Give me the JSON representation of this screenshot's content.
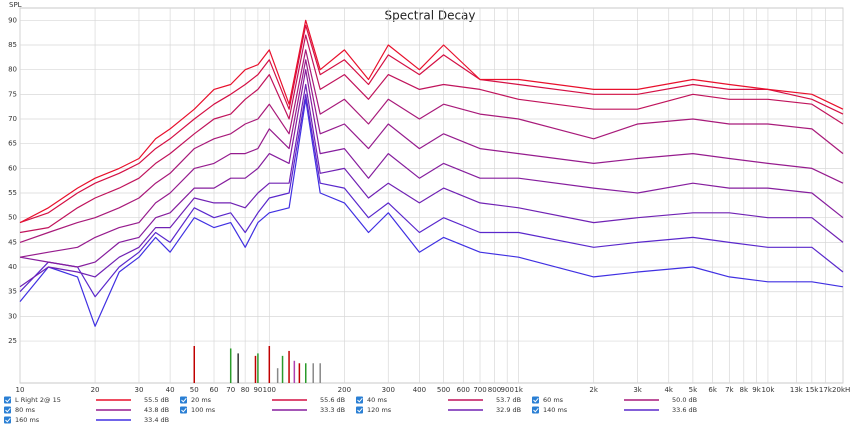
{
  "chart_data": {
    "type": "line",
    "title": "Spectral Decay",
    "y_label": "SPL",
    "log_x": true,
    "grid": true,
    "xlim": [
      10,
      20000
    ],
    "ylim": [
      16.5,
      92.5
    ],
    "yticks": [
      25,
      30,
      35,
      40,
      45,
      50,
      55,
      60,
      65,
      70,
      75,
      80,
      85,
      90
    ],
    "xticks": [
      10,
      20,
      30,
      40,
      50,
      60,
      70,
      80,
      90,
      100,
      200,
      300,
      400,
      500,
      600,
      700,
      800,
      900,
      {
        "value": 1000,
        "label": "1k"
      },
      {
        "value": 2000,
        "label": "2k"
      },
      {
        "value": 3000,
        "label": "3k"
      },
      {
        "value": 4000,
        "label": "4k"
      },
      {
        "value": 5000,
        "label": "5k"
      },
      {
        "value": 6000,
        "label": "6k"
      },
      {
        "value": 7000,
        "label": "7k"
      },
      {
        "value": 8000,
        "label": "8k"
      },
      {
        "value": 9000,
        "label": "9k"
      },
      {
        "value": 10000,
        "label": "10k"
      },
      {
        "value": 13000,
        "label": "13k"
      },
      {
        "value": 15000,
        "label": "15k"
      },
      {
        "value": 17000,
        "label": "17k"
      },
      {
        "value": 20000,
        "label": "20kHz"
      }
    ],
    "x": [
      10,
      13,
      17,
      20,
      25,
      30,
      35,
      40,
      50,
      60,
      70,
      80,
      90,
      100,
      120,
      140,
      160,
      200,
      250,
      300,
      400,
      500,
      700,
      1000,
      2000,
      3000,
      5000,
      7000,
      10000,
      15000,
      20000
    ],
    "series": [
      {
        "name": "L Right 2@ 15",
        "legend_text": "55.5 dB",
        "color": "#e8102c",
        "values": [
          49,
          52,
          56,
          58,
          60,
          62,
          66,
          68,
          72,
          76,
          77,
          80,
          81,
          84,
          73,
          90,
          80,
          84,
          78,
          85,
          80,
          85,
          78,
          78,
          76,
          76,
          78,
          77,
          76,
          75,
          72
        ]
      },
      {
        "name": "20 ms",
        "legend_text": "55.6 dB",
        "color": "#d41044",
        "values": [
          49,
          51,
          55,
          57,
          59,
          61,
          64,
          66,
          70,
          73,
          75,
          77,
          79,
          82,
          72,
          89,
          79,
          82,
          77,
          83,
          79,
          83,
          78,
          77,
          75,
          75,
          77,
          76,
          76,
          74,
          71
        ]
      },
      {
        "name": "40 ms",
        "legend_text": "53.7 dB",
        "color": "#c0145c",
        "values": [
          47,
          48,
          52,
          54,
          56,
          58,
          61,
          63,
          67,
          70,
          71,
          74,
          76,
          79,
          70,
          87,
          76,
          79,
          74,
          79,
          76,
          77,
          76,
          74,
          72,
          72,
          75,
          74,
          74,
          73,
          69
        ]
      },
      {
        "name": "60 ms",
        "legend_text": "50.0 dB",
        "color": "#a81a7a",
        "values": [
          45,
          47,
          49,
          50,
          52,
          54,
          57,
          59,
          64,
          66,
          67,
          69,
          70,
          73,
          67,
          84,
          71,
          74,
          69,
          74,
          70,
          73,
          71,
          70,
          66,
          69,
          70,
          69,
          69,
          68,
          63
        ]
      },
      {
        "name": "80 ms",
        "legend_text": "43.8 dB",
        "color": "#961c8e",
        "values": [
          42,
          43,
          44,
          46,
          48,
          49,
          53,
          55,
          60,
          61,
          63,
          63,
          64,
          68,
          64,
          82,
          67,
          69,
          64,
          69,
          64,
          67,
          64,
          63,
          61,
          62,
          63,
          62,
          61,
          60,
          57
        ]
      },
      {
        "name": "100 ms",
        "legend_text": "33.3 dB",
        "color": "#861e9e",
        "values": [
          42,
          41,
          40,
          41,
          45,
          46,
          50,
          51,
          56,
          56,
          58,
          58,
          60,
          63,
          61,
          80,
          63,
          64,
          58,
          63,
          58,
          61,
          58,
          58,
          56,
          55,
          57,
          56,
          56,
          55,
          50
        ]
      },
      {
        "name": "120 ms",
        "legend_text": "32.9 dB",
        "color": "#7022b4",
        "values": [
          36,
          40,
          39,
          38,
          42,
          44,
          48,
          48,
          54,
          53,
          53,
          52,
          55,
          57,
          57,
          77,
          59,
          60,
          54,
          57,
          53,
          56,
          53,
          52,
          49,
          50,
          51,
          51,
          50,
          50,
          45
        ]
      },
      {
        "name": "140 ms",
        "legend_text": "33.6 dB",
        "color": "#5a28cc",
        "values": [
          35,
          41,
          40,
          34,
          40,
          43,
          47,
          45,
          52,
          50,
          51,
          47,
          51,
          54,
          55,
          75,
          57,
          56,
          50,
          53,
          47,
          50,
          47,
          47,
          44,
          45,
          46,
          45,
          44,
          44,
          39
        ]
      },
      {
        "name": "160 ms",
        "legend_text": "33.4 dB",
        "color": "#4030e2",
        "values": [
          33,
          40,
          38,
          28,
          39,
          42,
          46,
          43,
          50,
          48,
          49,
          44,
          49,
          51,
          52,
          74,
          55,
          53,
          47,
          51,
          43,
          46,
          43,
          42,
          38,
          39,
          40,
          38,
          37,
          37,
          36
        ]
      }
    ],
    "markers": [
      {
        "x": 50,
        "top": 24,
        "color": "#c00000"
      },
      {
        "x": 70,
        "top": 23.5,
        "color": "#2a9a2a"
      },
      {
        "x": 75,
        "top": 22.5,
        "color": "#333333"
      },
      {
        "x": 88,
        "top": 22,
        "color": "#c00000"
      },
      {
        "x": 90,
        "top": 22.5,
        "color": "#2a9a2a"
      },
      {
        "x": 100,
        "top": 24,
        "color": "#c00000"
      },
      {
        "x": 108,
        "top": 19.5,
        "color": "#888888"
      },
      {
        "x": 113,
        "top": 22,
        "color": "#2a9a2a"
      },
      {
        "x": 120,
        "top": 23,
        "color": "#c00000"
      },
      {
        "x": 126,
        "top": 21,
        "color": "#b040b0"
      },
      {
        "x": 132,
        "top": 20.5,
        "color": "#c00000"
      },
      {
        "x": 140,
        "top": 20.5,
        "color": "#2a9a2a"
      },
      {
        "x": 150,
        "top": 20.5,
        "color": "#888888"
      },
      {
        "x": 160,
        "top": 20.5,
        "color": "#888888"
      }
    ]
  }
}
